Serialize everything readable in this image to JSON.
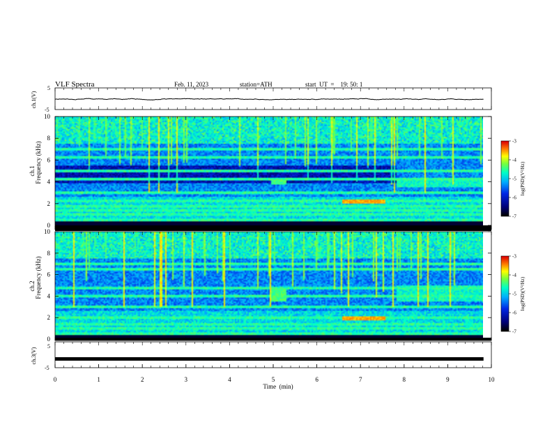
{
  "header": {
    "title": "VLF  Spectra",
    "date": "Feb. 11, 2023",
    "station": "station=ATH",
    "start": "start  UT  =    19: 50: 1"
  },
  "chart_data": [
    {
      "type": "line",
      "panel": "ch1-waveform",
      "ylabel": "ch.1(V)",
      "y_ticks": [
        "5",
        "-5"
      ],
      "ylim": [
        -5,
        5
      ],
      "xlim": [
        0,
        10
      ],
      "series": [
        {
          "color": "#000000",
          "description_value_range": [
            -0.8,
            0.5
          ],
          "typical_value": -0.2
        }
      ]
    },
    {
      "type": "heatmap",
      "panel": "ch1-spectrogram",
      "ylabel": "ch.1\nFrequency  (kHz)",
      "ylabel_lines": [
        "ch.1",
        "Frequency  (kHz)"
      ],
      "y_ticks": [
        "0",
        "2",
        "4",
        "6",
        "8",
        "10"
      ],
      "ylim": [
        0,
        10
      ],
      "xlim": [
        0,
        10
      ],
      "colorbar": {
        "label": "log(PSD)(V²/Hz)",
        "ticks": [
          "-3",
          "-4",
          "-5",
          "-6",
          "-7"
        ],
        "range": [
          -7,
          -3
        ]
      },
      "features": {
        "horizontal_bands_khz": [
          0.3,
          0.5,
          0.9,
          1.3,
          1.7,
          2.2,
          3.0,
          4.2,
          5.0,
          6.3,
          7.0
        ],
        "dark_gap_khz": [
          3.9,
          5.5
        ],
        "burst_time_min": [
          4.95,
          5.3
        ],
        "burst_freq_khz": [
          3.7,
          4.2
        ],
        "change_time_min": 7.85,
        "warm_patch_time_min": [
          6.6,
          7.6
        ],
        "warm_patch_freq_khz": 2.1
      }
    },
    {
      "type": "heatmap",
      "panel": "ch2-spectrogram",
      "ylabel": "ch.2\nFrequency  (kHz)",
      "ylabel_lines": [
        "ch.2",
        "Frequency  (kHz)"
      ],
      "y_ticks": [
        "0",
        "2",
        "4",
        "6",
        "8",
        "10"
      ],
      "ylim": [
        0,
        10
      ],
      "xlim": [
        0,
        10
      ],
      "colorbar": {
        "label": "log(PSD)(V²/Hz)",
        "ticks": [
          "-3",
          "-4",
          "-5",
          "-6",
          "-7"
        ],
        "range": [
          -7,
          -3
        ]
      },
      "features": {
        "horizontal_bands_khz": [
          0.4,
          0.9,
          1.3,
          2.0,
          3.0,
          4.0,
          4.8,
          6.5,
          7.0
        ],
        "burst_time_min": [
          4.95,
          5.3
        ],
        "burst_freq_khz": [
          3.5,
          4.8
        ],
        "change_time_min": 7.85,
        "warm_patch_time_min": [
          6.6,
          7.6
        ],
        "warm_patch_freq_khz": 1.9
      }
    },
    {
      "type": "line",
      "panel": "ch3-waveform",
      "ylabel": "ch.3(V)",
      "y_ticks": [
        "5",
        "-5"
      ],
      "ylim": [
        -5,
        5
      ],
      "xlim": [
        0,
        10
      ],
      "xlabel": "Time  (min)",
      "x_ticks": [
        "0",
        "1",
        "2",
        "3",
        "4",
        "5",
        "6",
        "7",
        "8",
        "9",
        "10"
      ],
      "series": [
        {
          "color": "#000000",
          "typical_value": -1.6
        }
      ]
    }
  ]
}
